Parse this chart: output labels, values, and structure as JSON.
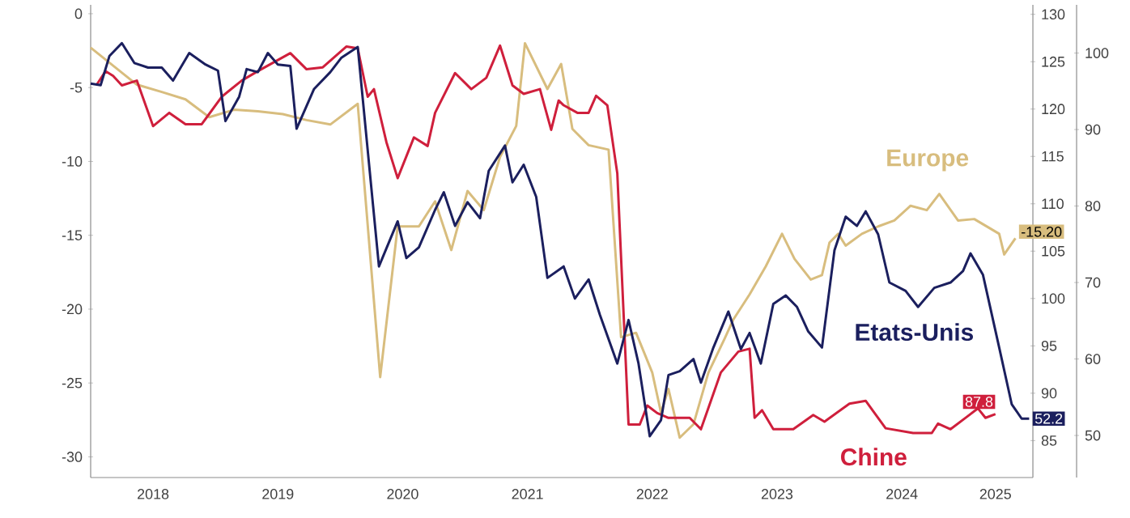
{
  "chart_data": {
    "type": "line",
    "xlim": [
      2018.0,
      2025.55
    ],
    "xticks": [
      {
        "value": 2018.5,
        "label": "2018"
      },
      {
        "value": 2019.5,
        "label": "2019"
      },
      {
        "value": 2020.5,
        "label": "2020"
      },
      {
        "value": 2021.5,
        "label": "2021"
      },
      {
        "value": 2022.5,
        "label": "2022"
      },
      {
        "value": 2023.5,
        "label": "2023"
      },
      {
        "value": 2024.5,
        "label": "2024"
      },
      {
        "value": 2025.25,
        "label": "2025"
      }
    ],
    "ylim": [
      -31.4,
      0.6
    ],
    "yticks": [
      -30,
      -25,
      -20,
      -15,
      -10,
      -5,
      0
    ],
    "y2lim": [
      81.1,
      131.0
    ],
    "y2ticks": [
      85,
      90,
      95,
      100,
      105,
      110,
      115,
      120,
      125,
      130
    ],
    "y3lim": [
      44.5,
      106.3
    ],
    "y3ticks": [
      50,
      60,
      70,
      80,
      90,
      100
    ],
    "series": [
      {
        "name": "Europe",
        "color": "#d8bd7e",
        "axis": "y",
        "x": [
          2018.0,
          2018.37,
          2018.57,
          2018.76,
          2018.95,
          2019.15,
          2019.34,
          2019.54,
          2019.73,
          2019.92,
          2020.14,
          2020.32,
          2020.46,
          2020.63,
          2020.76,
          2020.89,
          2021.02,
          2021.15,
          2021.28,
          2021.41,
          2021.48,
          2021.66,
          2021.77,
          2021.86,
          2021.99,
          2022.15,
          2022.25,
          2022.37,
          2022.5,
          2022.57,
          2022.63,
          2022.72,
          2022.83,
          2022.95,
          2023.08,
          2023.15,
          2023.28,
          2023.41,
          2023.54,
          2023.64,
          2023.77,
          2023.86,
          2023.92,
          2023.99,
          2024.05,
          2024.18,
          2024.31,
          2024.44,
          2024.57,
          2024.7,
          2024.8,
          2024.95,
          2025.08,
          2025.28,
          2025.32,
          2025.41
        ],
        "values": [
          -2.3,
          -4.8,
          -5.3,
          -5.8,
          -7.0,
          -6.5,
          -6.6,
          -6.8,
          -7.2,
          -7.5,
          -6.1,
          -24.6,
          -14.4,
          -14.4,
          -12.7,
          -16.0,
          -12.0,
          -13.3,
          -9.7,
          -7.6,
          -2.0,
          -5.1,
          -3.4,
          -7.8,
          -8.9,
          -9.2,
          -21.9,
          -21.6,
          -24.3,
          -27.0,
          -25.4,
          -28.7,
          -27.8,
          -24.3,
          -22.0,
          -20.7,
          -19.0,
          -17.1,
          -14.9,
          -16.6,
          -18.0,
          -17.7,
          -15.5,
          -14.9,
          -15.7,
          -14.9,
          -14.4,
          -14.0,
          -13.0,
          -13.3,
          -12.2,
          -14.0,
          -13.9,
          -14.9,
          -16.3,
          -15.2
        ],
        "value_labels": [
          null,
          null,
          null,
          null,
          null,
          null,
          null,
          null,
          null,
          null,
          null,
          null,
          null,
          null,
          null,
          null,
          null,
          null,
          null,
          null,
          null,
          null,
          null,
          null,
          null,
          null,
          null,
          null,
          null,
          null,
          null,
          null,
          null,
          null,
          null,
          null,
          null,
          null,
          null,
          null,
          null,
          null,
          null,
          null,
          null,
          null,
          null,
          null,
          null,
          null,
          null,
          null,
          null,
          null,
          null,
          "-15.20"
        ]
      },
      {
        "name": "Chine",
        "color": "#cf1f3c",
        "axis": "y2",
        "x": [
          2018.05,
          2018.12,
          2018.18,
          2018.25,
          2018.37,
          2018.5,
          2018.63,
          2018.76,
          2018.89,
          2019.05,
          2019.21,
          2019.34,
          2019.6,
          2019.73,
          2019.86,
          2020.05,
          2020.14,
          2020.22,
          2020.27,
          2020.37,
          2020.46,
          2020.59,
          2020.7,
          2020.76,
          2020.92,
          2021.05,
          2021.17,
          2021.28,
          2021.38,
          2021.47,
          2021.6,
          2021.69,
          2021.75,
          2021.79,
          2021.9,
          2021.99,
          2022.05,
          2022.14,
          2022.22,
          2022.31,
          2022.4,
          2022.46,
          2022.54,
          2022.63,
          2022.8,
          2022.89,
          2023.05,
          2023.19,
          2023.28,
          2023.32,
          2023.38,
          2023.47,
          2023.63,
          2023.79,
          2023.88,
          2024.08,
          2024.21,
          2024.37,
          2024.59,
          2024.74,
          2024.79,
          2024.89,
          2025.02,
          2025.11,
          2025.17,
          2025.25
        ],
        "values": [
          122.6,
          124.0,
          123.5,
          122.5,
          123.0,
          118.2,
          119.6,
          118.4,
          118.4,
          121.3,
          123.0,
          124.0,
          125.9,
          124.2,
          124.4,
          126.6,
          126.4,
          121.3,
          122.1,
          116.5,
          112.7,
          117.0,
          116.1,
          119.6,
          123.8,
          122.1,
          123.3,
          126.7,
          122.5,
          121.6,
          122.1,
          117.8,
          120.9,
          120.4,
          119.6,
          119.6,
          121.4,
          120.4,
          113.2,
          86.7,
          86.7,
          88.7,
          87.9,
          87.4,
          87.4,
          86.2,
          92.2,
          94.4,
          94.7,
          87.4,
          88.2,
          86.2,
          86.2,
          87.7,
          87.0,
          88.9,
          89.2,
          86.3,
          85.8,
          85.8,
          86.8,
          86.2,
          87.5,
          88.4,
          87.4,
          87.8
        ],
        "value_labels": [
          null,
          null,
          null,
          null,
          null,
          null,
          null,
          null,
          null,
          null,
          null,
          null,
          null,
          null,
          null,
          null,
          null,
          null,
          null,
          null,
          null,
          null,
          null,
          null,
          null,
          null,
          null,
          null,
          null,
          null,
          null,
          null,
          null,
          null,
          null,
          null,
          null,
          null,
          null,
          null,
          null,
          null,
          null,
          null,
          null,
          null,
          null,
          null,
          null,
          null,
          null,
          null,
          null,
          null,
          null,
          null,
          null,
          null,
          null,
          null,
          null,
          null,
          null,
          null,
          null,
          "87.8"
        ]
      },
      {
        "name": "Etats-Unis",
        "color": "#1b1f5e",
        "axis": "y3",
        "x": [
          2018.0,
          2018.08,
          2018.15,
          2018.25,
          2018.35,
          2018.46,
          2018.57,
          2018.66,
          2018.79,
          2018.92,
          2019.02,
          2019.08,
          2019.19,
          2019.25,
          2019.34,
          2019.42,
          2019.5,
          2019.6,
          2019.65,
          2019.79,
          2019.92,
          2020.01,
          2020.14,
          2020.31,
          2020.46,
          2020.53,
          2020.63,
          2020.76,
          2020.83,
          2020.92,
          2021.02,
          2021.12,
          2021.19,
          2021.32,
          2021.38,
          2021.47,
          2021.57,
          2021.66,
          2021.79,
          2021.88,
          2021.99,
          2022.08,
          2022.22,
          2022.31,
          2022.39,
          2022.48,
          2022.57,
          2022.63,
          2022.72,
          2022.83,
          2022.89,
          2022.99,
          2023.11,
          2023.21,
          2023.28,
          2023.37,
          2023.47,
          2023.57,
          2023.66,
          2023.75,
          2023.86,
          2023.96,
          2024.05,
          2024.14,
          2024.21,
          2024.31,
          2024.4,
          2024.53,
          2024.63,
          2024.76,
          2024.89,
          2024.99,
          2025.05,
          2025.15,
          2025.28,
          2025.38,
          2025.46,
          2025.52
        ],
        "values": [
          96.0,
          95.8,
          99.6,
          101.3,
          98.7,
          98.1,
          98.1,
          96.4,
          100.0,
          98.5,
          97.7,
          91.1,
          94.3,
          97.9,
          97.5,
          100.0,
          98.5,
          98.3,
          90.1,
          95.3,
          97.5,
          99.4,
          100.8,
          72.1,
          78.0,
          73.2,
          74.6,
          79.5,
          81.8,
          77.4,
          80.5,
          78.4,
          84.6,
          87.9,
          83.1,
          85.4,
          81.2,
          70.6,
          72.1,
          67.9,
          70.4,
          65.8,
          59.4,
          65.1,
          59.4,
          49.9,
          52.0,
          57.9,
          58.4,
          60.0,
          56.9,
          61.5,
          66.2,
          61.3,
          63.4,
          59.4,
          67.2,
          68.3,
          66.8,
          63.6,
          61.5,
          74.2,
          78.6,
          77.4,
          79.3,
          76.3,
          70.0,
          68.9,
          66.8,
          69.3,
          70.0,
          71.5,
          73.8,
          71.0,
          61.5,
          54.1,
          52.2,
          52.2
        ],
        "value_labels": [
          null,
          null,
          null,
          null,
          null,
          null,
          null,
          null,
          null,
          null,
          null,
          null,
          null,
          null,
          null,
          null,
          null,
          null,
          null,
          null,
          null,
          null,
          null,
          null,
          null,
          null,
          null,
          null,
          null,
          null,
          null,
          null,
          null,
          null,
          null,
          null,
          null,
          null,
          null,
          null,
          null,
          null,
          null,
          null,
          null,
          null,
          null,
          null,
          null,
          null,
          null,
          null,
          null,
          null,
          null,
          null,
          null,
          null,
          null,
          null,
          null,
          null,
          null,
          null,
          null,
          null,
          null,
          null,
          null,
          null,
          null,
          null,
          null,
          null,
          null,
          null,
          null,
          "52.2"
        ]
      }
    ]
  }
}
